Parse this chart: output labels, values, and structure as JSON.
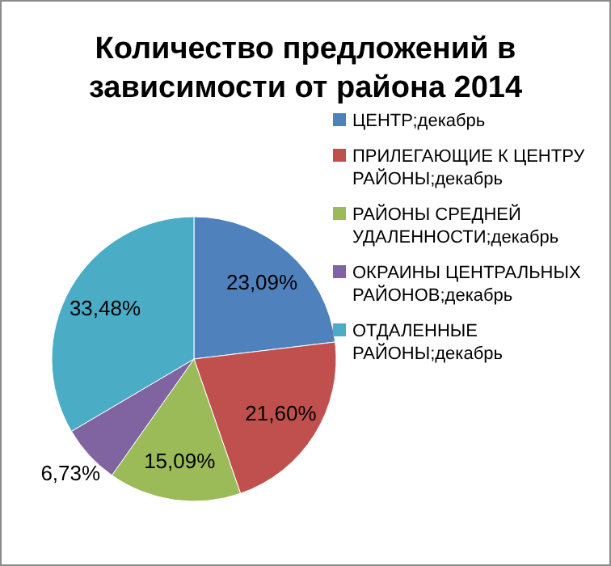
{
  "chart_data": {
    "type": "pie",
    "title": "Количество предложений в зависимости от района 2014",
    "categories": [
      "ЦЕНТР;декабрь",
      "ПРИЛЕГАЮЩИЕ К ЦЕНТРУ РАЙОНЫ;декабрь",
      "РАЙОНЫ СРЕДНЕЙ УДАЛЕННОСТИ;декабрь",
      "ОКРАИНЫ ЦЕНТРАЛЬНЫХ РАЙОНОВ;декабрь",
      "ОТДАЛЕННЫЕ РАЙОНЫ;декабрь"
    ],
    "values": [
      23.09,
      21.6,
      15.09,
      6.73,
      33.48
    ],
    "value_labels": [
      "23,09%",
      "21,60%",
      "15,09%",
      "6,73%",
      "33,48%"
    ],
    "colors": [
      "#4f81bd",
      "#c0504d",
      "#9bbb59",
      "#8064a2",
      "#4bacc6"
    ],
    "legend": "right"
  }
}
